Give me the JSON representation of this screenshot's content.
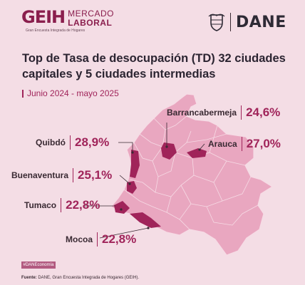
{
  "header": {
    "geih_mark": "GEIH",
    "geih_line1": "MERCADO",
    "geih_line2": "LABORAL",
    "geih_subtitle": "Gran Encuesta Integrada de Hogares",
    "dane_name": "DANE"
  },
  "title": "Top de Tasa de desocupación (TD) 32 ciudades capitales y 5 ciudades intermedias",
  "period": "Junio 2024 - mayo 2025",
  "cities": [
    {
      "name": "Barrancabermeja",
      "value": "24,6%"
    },
    {
      "name": "Quibdó",
      "value": "28,9%"
    },
    {
      "name": "Arauca",
      "value": "27,0%"
    },
    {
      "name": "Buenaventura",
      "value": "25,1%"
    },
    {
      "name": "Tumaco",
      "value": "22,8%"
    },
    {
      "name": "Mocoa",
      "value": "22,8%"
    }
  ],
  "footer": {
    "hashtag": "#DANEconomía",
    "source_label": "Fuente:",
    "source_text": "DANE, Gran Encuesta Integrada de Hogares (GEIH)."
  },
  "colors": {
    "background": "#f4dde5",
    "map_fill": "#e9a7c0",
    "highlight": "#a0245a",
    "brand": "#8a1e4d"
  }
}
